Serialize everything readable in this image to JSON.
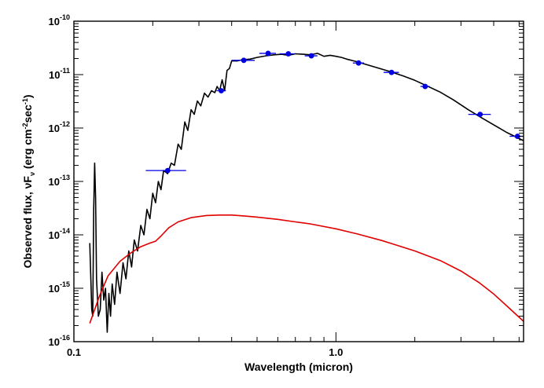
{
  "chart_data": {
    "type": "scatter",
    "title": "",
    "xlabel": "Wavelength (micron)",
    "ylabel": {
      "prefix": "Observed flux, ",
      "nu": "ν",
      "F": "F",
      "sub": "ν",
      "unit_open": " (erg cm",
      "exp1": "-2",
      "mid": "sec",
      "exp2": "-1",
      "close": ")"
    },
    "xscale": "log",
    "yscale": "log",
    "xlim": [
      0.1,
      5.2
    ],
    "ylim": [
      1e-16,
      1e-10
    ],
    "x_ticks": [
      {
        "value": 0.1,
        "label": "0.1"
      },
      {
        "value": 1.0,
        "label": "1.0"
      }
    ],
    "y_ticks": [
      {
        "exp": -16,
        "base": "10",
        "sup": "-16"
      },
      {
        "exp": -15,
        "base": "10",
        "sup": "-15"
      },
      {
        "exp": -14,
        "base": "10",
        "sup": "-14"
      },
      {
        "exp": -13,
        "base": "10",
        "sup": "-13"
      },
      {
        "exp": -12,
        "base": "10",
        "sup": "-12"
      },
      {
        "exp": -11,
        "base": "10",
        "sup": "-11"
      },
      {
        "exp": -10,
        "base": "10",
        "sup": "-10"
      }
    ],
    "grid": false,
    "legend": "none",
    "colors": {
      "spectrum": "#000000",
      "model": "#e00000",
      "photometry": "#0000e0"
    },
    "series": [
      {
        "kind": "line",
        "color_key": "spectrum",
        "points": [
          [
            0.115,
            7e-15
          ],
          [
            0.117,
            4e-16
          ],
          [
            0.118,
            3e-16
          ],
          [
            0.119,
            3e-14
          ],
          [
            0.12,
            2.2e-13
          ],
          [
            0.121,
            5e-14
          ],
          [
            0.122,
            1.5e-15
          ],
          [
            0.124,
            3e-16
          ],
          [
            0.126,
            4e-16
          ],
          [
            0.128,
            2e-15
          ],
          [
            0.13,
            6e-16
          ],
          [
            0.132,
            1e-15
          ],
          [
            0.134,
            1.5e-16
          ],
          [
            0.136,
            8e-16
          ],
          [
            0.138,
            3e-16
          ],
          [
            0.14,
            1.2e-15
          ],
          [
            0.143,
            5e-16
          ],
          [
            0.146,
            2e-15
          ],
          [
            0.15,
            8e-16
          ],
          [
            0.154,
            3e-15
          ],
          [
            0.158,
            1.5e-15
          ],
          [
            0.162,
            5e-15
          ],
          [
            0.166,
            2.5e-15
          ],
          [
            0.17,
            8e-15
          ],
          [
            0.175,
            5e-15
          ],
          [
            0.18,
            1.5e-14
          ],
          [
            0.185,
            1e-14
          ],
          [
            0.19,
            3e-14
          ],
          [
            0.195,
            2e-14
          ],
          [
            0.2,
            6e-14
          ],
          [
            0.205,
            4e-14
          ],
          [
            0.21,
            1e-13
          ],
          [
            0.215,
            7e-14
          ],
          [
            0.22,
            1.6e-13
          ],
          [
            0.228,
            1.4e-13
          ],
          [
            0.235,
            2.2e-13
          ],
          [
            0.242,
            2e-13
          ],
          [
            0.25,
            5e-13
          ],
          [
            0.257,
            4e-13
          ],
          [
            0.265,
            1.3e-12
          ],
          [
            0.272,
            9e-13
          ],
          [
            0.28,
            2.2e-12
          ],
          [
            0.288,
            1.8e-12
          ],
          [
            0.296,
            3.2e-12
          ],
          [
            0.305,
            2.6e-12
          ],
          [
            0.315,
            4.5e-12
          ],
          [
            0.325,
            3.8e-12
          ],
          [
            0.335,
            5e-12
          ],
          [
            0.345,
            4.6e-12
          ],
          [
            0.352,
            6e-12
          ],
          [
            0.36,
            5e-12
          ],
          [
            0.368,
            8e-12
          ],
          [
            0.376,
            5e-12
          ],
          [
            0.384,
            1.2e-11
          ],
          [
            0.392,
            1.3e-11
          ],
          [
            0.4,
            1.8e-11
          ],
          [
            0.42,
            1.8e-11
          ],
          [
            0.44,
            1.9e-11
          ],
          [
            0.47,
            1.95e-11
          ],
          [
            0.5,
            2.1e-11
          ],
          [
            0.54,
            2.25e-11
          ],
          [
            0.58,
            2.35e-11
          ],
          [
            0.62,
            2.4e-11
          ],
          [
            0.66,
            2.3e-11
          ],
          [
            0.7,
            2.45e-11
          ],
          [
            0.75,
            2.4e-11
          ],
          [
            0.8,
            2.35e-11
          ],
          [
            0.85,
            2.5e-11
          ],
          [
            0.9,
            2.2e-11
          ],
          [
            0.95,
            2.3e-11
          ],
          [
            1.0,
            2.2e-11
          ],
          [
            1.05,
            2.1e-11
          ],
          [
            1.1,
            1.95e-11
          ],
          [
            1.2,
            1.75e-11
          ],
          [
            1.4,
            1.4e-11
          ],
          [
            1.6,
            1.15e-11
          ],
          [
            1.8,
            9.5e-12
          ],
          [
            2.0,
            7.8e-12
          ],
          [
            2.2,
            6.3e-12
          ],
          [
            2.5,
            4.7e-12
          ],
          [
            2.8,
            3.4e-12
          ],
          [
            3.2,
            2.2e-12
          ],
          [
            3.6,
            1.55e-12
          ],
          [
            4.0,
            1.15e-12
          ],
          [
            4.5,
            8.2e-13
          ],
          [
            5.2,
            5.8e-13
          ]
        ]
      },
      {
        "kind": "line",
        "color_key": "model",
        "points": [
          [
            0.115,
            2.2e-16
          ],
          [
            0.125,
            7e-16
          ],
          [
            0.135,
            1.7e-15
          ],
          [
            0.15,
            3.2e-15
          ],
          [
            0.165,
            4.6e-15
          ],
          [
            0.18,
            6e-15
          ],
          [
            0.195,
            7e-15
          ],
          [
            0.205,
            7.6e-15
          ],
          [
            0.215,
            9.5e-15
          ],
          [
            0.23,
            1.35e-14
          ],
          [
            0.25,
            1.75e-14
          ],
          [
            0.28,
            2.1e-14
          ],
          [
            0.32,
            2.3e-14
          ],
          [
            0.36,
            2.35e-14
          ],
          [
            0.4,
            2.35e-14
          ],
          [
            0.45,
            2.25e-14
          ],
          [
            0.5,
            2.15e-14
          ],
          [
            0.6,
            1.95e-14
          ],
          [
            0.7,
            1.75e-14
          ],
          [
            0.8,
            1.6e-14
          ],
          [
            1.0,
            1.3e-14
          ],
          [
            1.2,
            1.05e-14
          ],
          [
            1.5,
            7.8e-15
          ],
          [
            2.0,
            5e-15
          ],
          [
            2.5,
            3.3e-15
          ],
          [
            3.0,
            2.1e-15
          ],
          [
            3.5,
            1.3e-15
          ],
          [
            4.0,
            7.8e-16
          ],
          [
            4.5,
            4.6e-16
          ],
          [
            5.2,
            2.4e-16
          ]
        ]
      },
      {
        "kind": "points",
        "color_key": "photometry",
        "points": [
          {
            "x": 0.228,
            "y": 1.6e-13,
            "xerr": [
              0.188,
              0.268
            ]
          },
          {
            "x": 0.365,
            "y": 5e-12,
            "xerr": [
              0.35,
              0.38
            ]
          },
          {
            "x": 0.445,
            "y": 1.85e-11,
            "xerr": [
              0.4,
              0.49
            ]
          },
          {
            "x": 0.551,
            "y": 2.5e-11,
            "xerr": [
              0.51,
              0.59
            ]
          },
          {
            "x": 0.658,
            "y": 2.45e-11,
            "xerr": [
              0.61,
              0.7
            ]
          },
          {
            "x": 0.806,
            "y": 2.25e-11,
            "xerr": [
              0.76,
              0.85
            ]
          },
          {
            "x": 1.22,
            "y": 1.65e-11,
            "xerr": [
              1.16,
              1.28
            ]
          },
          {
            "x": 1.63,
            "y": 1.1e-11,
            "xerr": [
              1.52,
              1.74
            ]
          },
          {
            "x": 2.19,
            "y": 6e-12,
            "xerr": [
              2.1,
              2.28
            ]
          },
          {
            "x": 3.55,
            "y": 1.8e-12,
            "xerr": [
              3.2,
              3.9
            ]
          },
          {
            "x": 4.93,
            "y": 7e-13,
            "xerr": [
              4.6,
              5.2
            ]
          }
        ]
      }
    ]
  }
}
